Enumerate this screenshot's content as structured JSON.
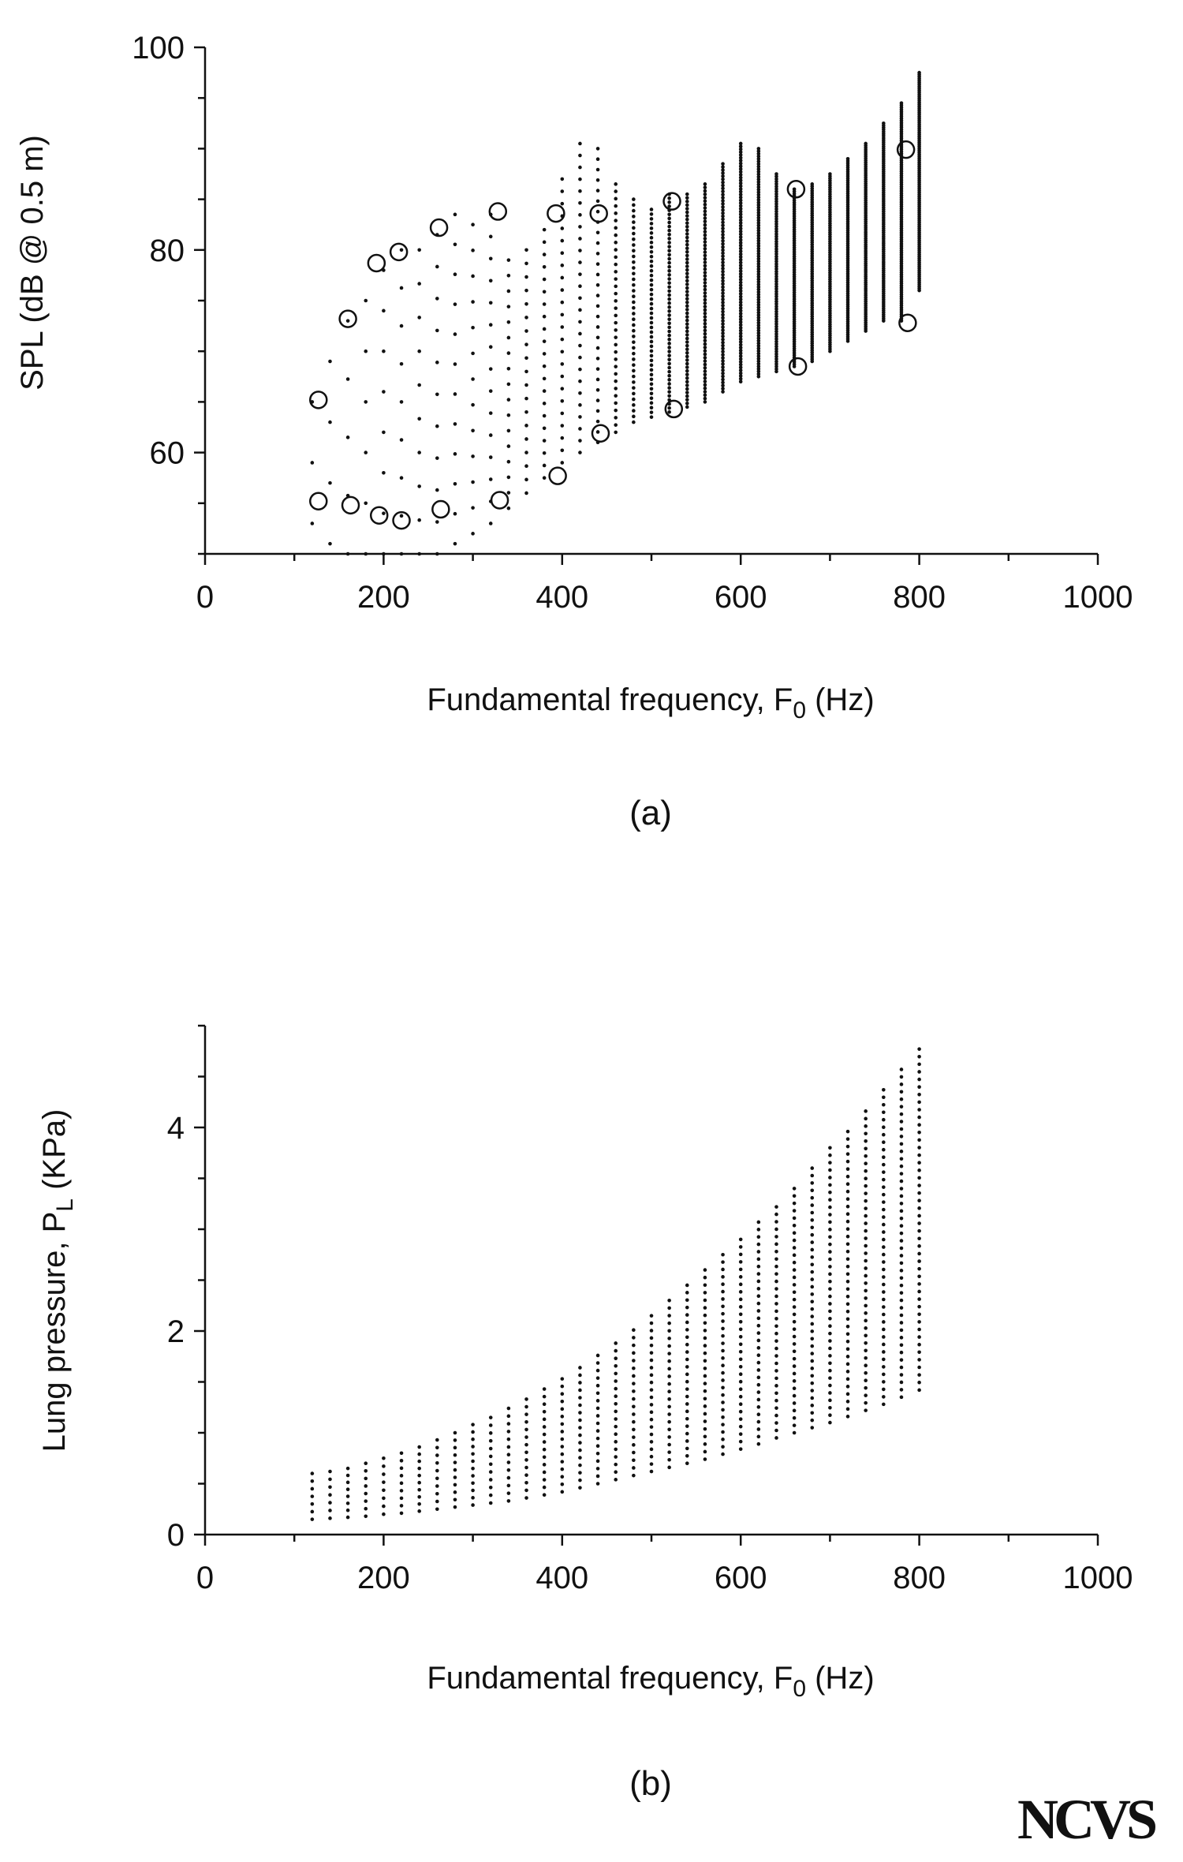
{
  "chart_data": [
    {
      "type": "scatter",
      "panel_label": "(a)",
      "xlabel": "Fundamental frequency, F",
      "xlabel_sub": "0",
      "xlabel_tail": " (Hz)",
      "ylabel": "SPL (dB @ 0.5 m)",
      "xlim": [
        0,
        1000
      ],
      "ylim": [
        50,
        100
      ],
      "xticks": [
        0,
        200,
        400,
        600,
        800,
        1000
      ],
      "yticks": [
        60,
        80,
        100
      ],
      "grid": false,
      "series": [
        {
          "marker": "dot",
          "x": [
            120,
            140,
            160,
            180,
            200,
            220,
            240,
            260,
            280,
            300,
            320,
            340,
            360,
            380,
            400,
            420,
            440,
            460,
            480,
            500,
            520,
            540,
            560,
            580,
            600,
            620,
            640,
            660,
            680,
            700,
            720,
            740,
            760,
            780,
            800
          ],
          "y_low": [
            53,
            51,
            50,
            50,
            50,
            50,
            50,
            50,
            51,
            52,
            53,
            54.5,
            56,
            57.5,
            59,
            60,
            61,
            62,
            63,
            63.5,
            64,
            64.5,
            65,
            66,
            67,
            67.5,
            68,
            68.5,
            69,
            70,
            71,
            72,
            73,
            73,
            76
          ],
          "y_high": [
            65,
            69,
            73,
            75,
            78,
            80,
            80,
            81.5,
            83.5,
            82.5,
            83.5,
            79,
            80,
            82,
            87,
            90.5,
            90,
            86.5,
            85,
            84,
            85.5,
            85.5,
            86.5,
            88.5,
            90.5,
            90,
            87.5,
            86,
            86.5,
            87.5,
            89,
            90.5,
            92.5,
            94.5,
            97.5
          ],
          "points_per_column": [
            3,
            4,
            5,
            6,
            8,
            9,
            10,
            11,
            12,
            13,
            15,
            17,
            19,
            21,
            24,
            27,
            29,
            35,
            40,
            45,
            55,
            60,
            65,
            75,
            85,
            90,
            80,
            80,
            80,
            80,
            85,
            90,
            95,
            100,
            110
          ]
        },
        {
          "marker": "open-circle",
          "x": [
            127,
            127,
            160,
            163,
            192,
            195,
            217,
            220,
            262,
            264,
            328,
            330,
            393,
            395,
            441,
            443,
            523,
            525,
            662,
            664,
            785,
            787
          ],
          "y": [
            65.2,
            55.2,
            73.2,
            54.8,
            78.7,
            53.8,
            79.8,
            53.3,
            82.2,
            54.4,
            83.8,
            55.3,
            83.6,
            57.7,
            83.6,
            61.9,
            84.8,
            64.3,
            86,
            68.5,
            89.9,
            72.8
          ]
        }
      ]
    },
    {
      "type": "scatter",
      "panel_label": "(b)",
      "xlabel": "Fundamental frequency, F",
      "xlabel_sub": "0",
      "xlabel_tail": " (Hz)",
      "ylabel": "Lung pressure, P",
      "ylabel_sub": "L",
      "ylabel_tail": " (KPa)",
      "xlim": [
        0,
        1000
      ],
      "ylim": [
        0,
        5
      ],
      "xticks": [
        0,
        200,
        400,
        600,
        800,
        1000
      ],
      "yticks": [
        0,
        2,
        4
      ],
      "grid": false,
      "series": [
        {
          "marker": "dot",
          "x": [
            120,
            140,
            160,
            180,
            200,
            220,
            240,
            260,
            280,
            300,
            320,
            340,
            360,
            380,
            400,
            420,
            440,
            460,
            480,
            500,
            520,
            540,
            560,
            580,
            600,
            620,
            640,
            660,
            680,
            700,
            720,
            740,
            760,
            780,
            800
          ],
          "y_low": [
            0.15,
            0.16,
            0.17,
            0.18,
            0.2,
            0.21,
            0.23,
            0.25,
            0.27,
            0.29,
            0.31,
            0.33,
            0.36,
            0.39,
            0.42,
            0.46,
            0.5,
            0.54,
            0.58,
            0.62,
            0.66,
            0.7,
            0.74,
            0.79,
            0.84,
            0.89,
            0.95,
            1.0,
            1.05,
            1.1,
            1.16,
            1.22,
            1.28,
            1.35,
            1.42
          ],
          "y_high": [
            0.6,
            0.62,
            0.65,
            0.7,
            0.75,
            0.8,
            0.86,
            0.93,
            1.0,
            1.08,
            1.15,
            1.24,
            1.33,
            1.43,
            1.53,
            1.64,
            1.76,
            1.88,
            2.01,
            2.15,
            2.3,
            2.45,
            2.6,
            2.75,
            2.9,
            3.07,
            3.22,
            3.4,
            3.6,
            3.8,
            3.96,
            4.16,
            4.37,
            4.57,
            4.77
          ]
        }
      ]
    }
  ],
  "logo": "NCVS"
}
